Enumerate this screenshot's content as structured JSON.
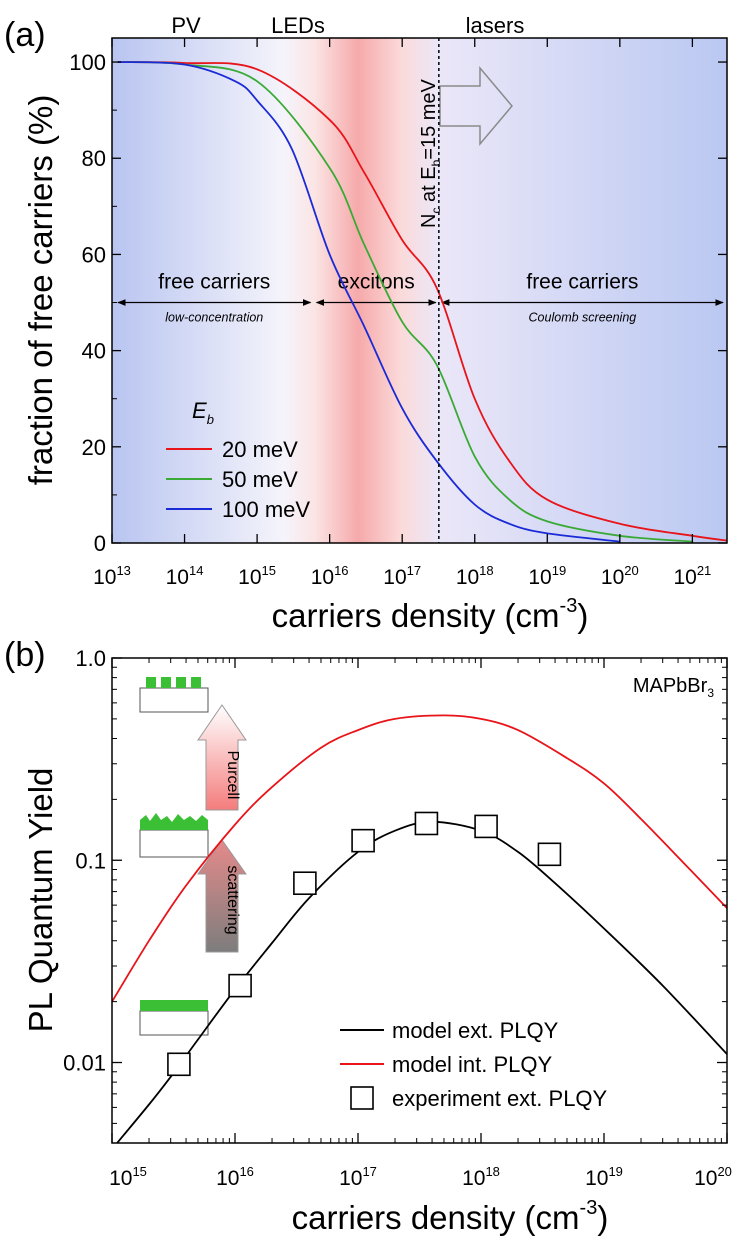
{
  "chart_data": [
    {
      "panel_label": "(a)",
      "type": "line",
      "xscale": "log",
      "xlim": [
        10000000000000.0,
        3e+21
      ],
      "ylim": [
        0,
        105
      ],
      "x_tick_exponents": [
        13,
        14,
        15,
        16,
        17,
        18,
        19,
        20,
        21
      ],
      "x_tick_base": "10",
      "y_ticks": [
        0,
        20,
        40,
        60,
        80,
        100
      ],
      "y_tick_labels": [
        "0",
        "20",
        "40",
        "60",
        "80",
        "100"
      ],
      "xlabel": "carriers density (cm",
      "xlabel_sup": "-3",
      "xlabel_tail": ")",
      "ylabel": "fraction of free carriers (%)",
      "region_labels": [
        "PV",
        "LEDs",
        "lasers"
      ],
      "region_colors": {
        "pv": "#b8c4f0",
        "excitons": "#f7b0b0",
        "lasers": "#d8d0f4"
      },
      "vline": {
        "x": 3.2e+17,
        "label_main": "N",
        "label_sub1": "c",
        "label_mid": " at E",
        "label_sub2": "b",
        "label_tail": "=15 meV"
      },
      "arrow_annotations": [
        {
          "label": "free carriers",
          "sublabel": "low-concentration",
          "x_from": 11000000000000.0,
          "x_to": 6000000000000000.0,
          "y": 50
        },
        {
          "label": "excitons",
          "sublabel": "",
          "x_from": 6000000000000000.0,
          "x_to": 3.2e+17,
          "y": 50
        },
        {
          "label": "free carriers",
          "sublabel": "Coulomb screening",
          "x_from": 3.2e+17,
          "x_to": 2.9e+21,
          "y": 50
        }
      ],
      "legend": {
        "title": "E",
        "title_sub": "b",
        "placement": "lower-left"
      },
      "series": [
        {
          "name": "20 meV",
          "color": "#e8141a",
          "x": [
            12000000000000.0,
            100000000000000.0,
            1000000000000000.0,
            1e+16,
            3e+16,
            1e+17,
            3e+17,
            1e+18,
            3e+18,
            1e+19,
            1e+20,
            1e+21,
            3e+21
          ],
          "y": [
            100,
            99.8,
            98.5,
            88,
            77,
            63,
            53,
            30,
            17,
            9,
            4,
            1.5,
            0.5
          ]
        },
        {
          "name": "50 meV",
          "color": "#3aaa35",
          "x": [
            12000000000000.0,
            100000000000000.0,
            1000000000000000.0,
            1e+16,
            3e+16,
            1e+17,
            3e+17,
            1e+18,
            3e+18,
            1e+19,
            1e+20,
            1e+21
          ],
          "y": [
            100,
            99.5,
            96,
            78,
            62,
            46,
            37,
            18,
            9,
            4.5,
            1.5,
            0.3
          ]
        },
        {
          "name": "100 meV",
          "color": "#1a2ad6",
          "x": [
            12000000000000.0,
            100000000000000.0,
            500000000000000.0,
            1000000000000000.0,
            3000000000000000.0,
            1e+16,
            3e+16,
            1e+17,
            3e+17,
            1e+18,
            3e+18,
            1e+19,
            1e+20
          ],
          "y": [
            100,
            99.5,
            96,
            92,
            82,
            60,
            45,
            28,
            17,
            8,
            4,
            2,
            0.3
          ]
        }
      ]
    },
    {
      "panel_label": "(b)",
      "type": "line",
      "xscale": "log",
      "yscale": "log",
      "xlim": [
        1000000000000000.0,
        1e+20
      ],
      "ylim": [
        0.004,
        1.0
      ],
      "x_tick_exponents": [
        15,
        16,
        17,
        18,
        19,
        20
      ],
      "x_tick_base": "10",
      "y_ticks": [
        0.01,
        0.1,
        1.0
      ],
      "y_tick_labels": [
        "0.01",
        "0.1",
        "1.0"
      ],
      "xlabel": "carriers density (cm",
      "xlabel_sup": "-3",
      "xlabel_tail": ")",
      "ylabel": "PL Quantum Yield",
      "material_main": "MAPbBr",
      "material_sub": "3",
      "illustration_labels": [
        "Purcell",
        "scattering"
      ],
      "legend": {
        "placement": "lower-right"
      },
      "series": [
        {
          "name": "model ext. PLQY",
          "color": "#000000",
          "kind": "line",
          "x": [
            1100000000000000.0,
            2000000000000000.0,
            3000000000000000.0,
            5000000000000000.0,
            1e+16,
            2e+16,
            4e+16,
            1e+17,
            2e+17,
            4e+17,
            1e+18,
            2e+18,
            4e+18,
            1e+19,
            3e+19,
            1e+20
          ],
          "y": [
            0.004,
            0.0062,
            0.0085,
            0.013,
            0.023,
            0.039,
            0.065,
            0.11,
            0.14,
            0.155,
            0.14,
            0.11,
            0.077,
            0.046,
            0.024,
            0.011
          ]
        },
        {
          "name": "model int. PLQY",
          "color": "#e8141a",
          "kind": "line",
          "x": [
            1000000000000000.0,
            2000000000000000.0,
            4000000000000000.0,
            1e+16,
            2e+16,
            5e+16,
            1e+17,
            2e+17,
            5e+17,
            1e+18,
            2e+18,
            5e+18,
            1e+19,
            2e+19,
            5e+19,
            1e+20
          ],
          "y": [
            0.02,
            0.04,
            0.075,
            0.15,
            0.23,
            0.36,
            0.44,
            0.5,
            0.52,
            0.5,
            0.44,
            0.32,
            0.24,
            0.16,
            0.09,
            0.058
          ]
        },
        {
          "name": "experiment ext. PLQY",
          "color": "#000000",
          "kind": "markers",
          "x": [
            3500000000000000.0,
            1.1e+16,
            3.7e+16,
            1.1e+17,
            3.6e+17,
            1.1e+18,
            3.6e+18
          ],
          "y": [
            0.0098,
            0.024,
            0.077,
            0.125,
            0.152,
            0.147,
            0.107
          ]
        }
      ]
    }
  ]
}
